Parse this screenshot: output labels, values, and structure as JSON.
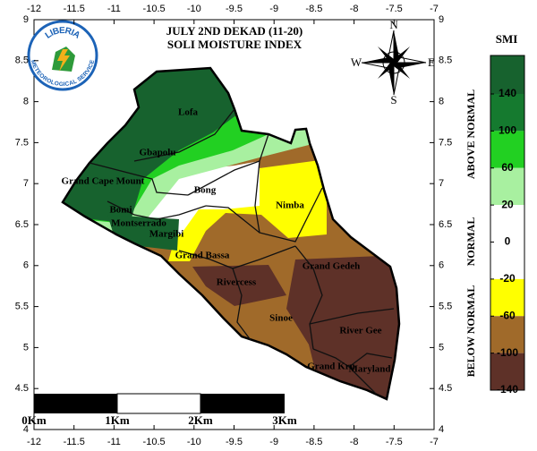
{
  "title": [
    "JULY 2ND DEKAD (11-20)",
    "SOLI MOISTURE INDEX"
  ],
  "logo": {
    "name": "LIBERIA",
    "subtitle": "METEOROLOGICAL SERVICE"
  },
  "compass": {
    "n": "N",
    "s": "S",
    "e": "E",
    "w": "W"
  },
  "map": {
    "xlim": [
      -12,
      -7
    ],
    "ylim": [
      4,
      9
    ],
    "xticks": [
      -12,
      -11.5,
      -11,
      -10.5,
      -10,
      -9.5,
      -9,
      -8.5,
      -8,
      -7.5,
      -7
    ],
    "yticks": [
      4,
      4.5,
      5,
      5.5,
      6,
      6.5,
      7,
      7.5,
      8,
      8.5,
      9
    ],
    "regions": [
      "Lofa",
      "Gbapolu",
      "Grand Cape Mount",
      "Bong",
      "Nimba",
      "Bomi",
      "Montserrado",
      "Margibi",
      "Grand Bassa",
      "Grand Gedeh",
      "Rivercess",
      "Sinoe",
      "River Gee",
      "Grand Kru",
      "Maryland"
    ]
  },
  "scale_bar": {
    "labels": [
      "0Km",
      "1Km",
      "2Km",
      "3Km"
    ]
  },
  "legend": {
    "title": "SMI",
    "ticks": [
      140,
      100,
      60,
      20,
      0,
      -20,
      -60,
      -100,
      -140
    ],
    "colors": [
      "#17622e",
      "#157a2f",
      "#22d022",
      "#a8f0a0",
      "#ffffff",
      "#ffff00",
      "#a06a2a",
      "#5e3128"
    ],
    "groups": [
      "ABOVE NORMAL",
      "NORMAL",
      "BELOW NORMAL"
    ]
  }
}
